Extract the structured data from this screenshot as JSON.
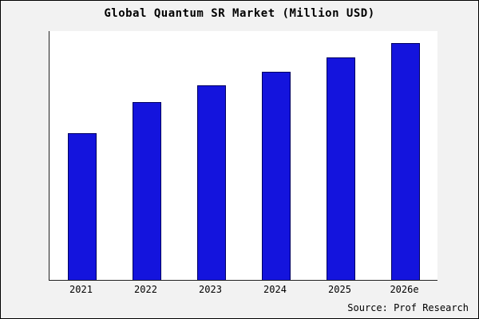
{
  "title": "Global Quantum SR Market (Million USD)",
  "source_text": "Source: Prof Research",
  "chart_data": {
    "type": "bar",
    "title": "Global Quantum SR Market (Million USD)",
    "categories": [
      "2021",
      "2022",
      "2023",
      "2024",
      "2025",
      "2026e"
    ],
    "values": [
      62,
      75,
      82,
      88,
      94,
      100
    ],
    "xlabel": "",
    "ylabel": "",
    "ylim": [
      0,
      105
    ],
    "grid": false,
    "legend": false,
    "bar_color": "#1414dd",
    "bar_border_color": "#000060",
    "plot_background": "#ffffff",
    "outer_background": "#f2f2f2"
  }
}
